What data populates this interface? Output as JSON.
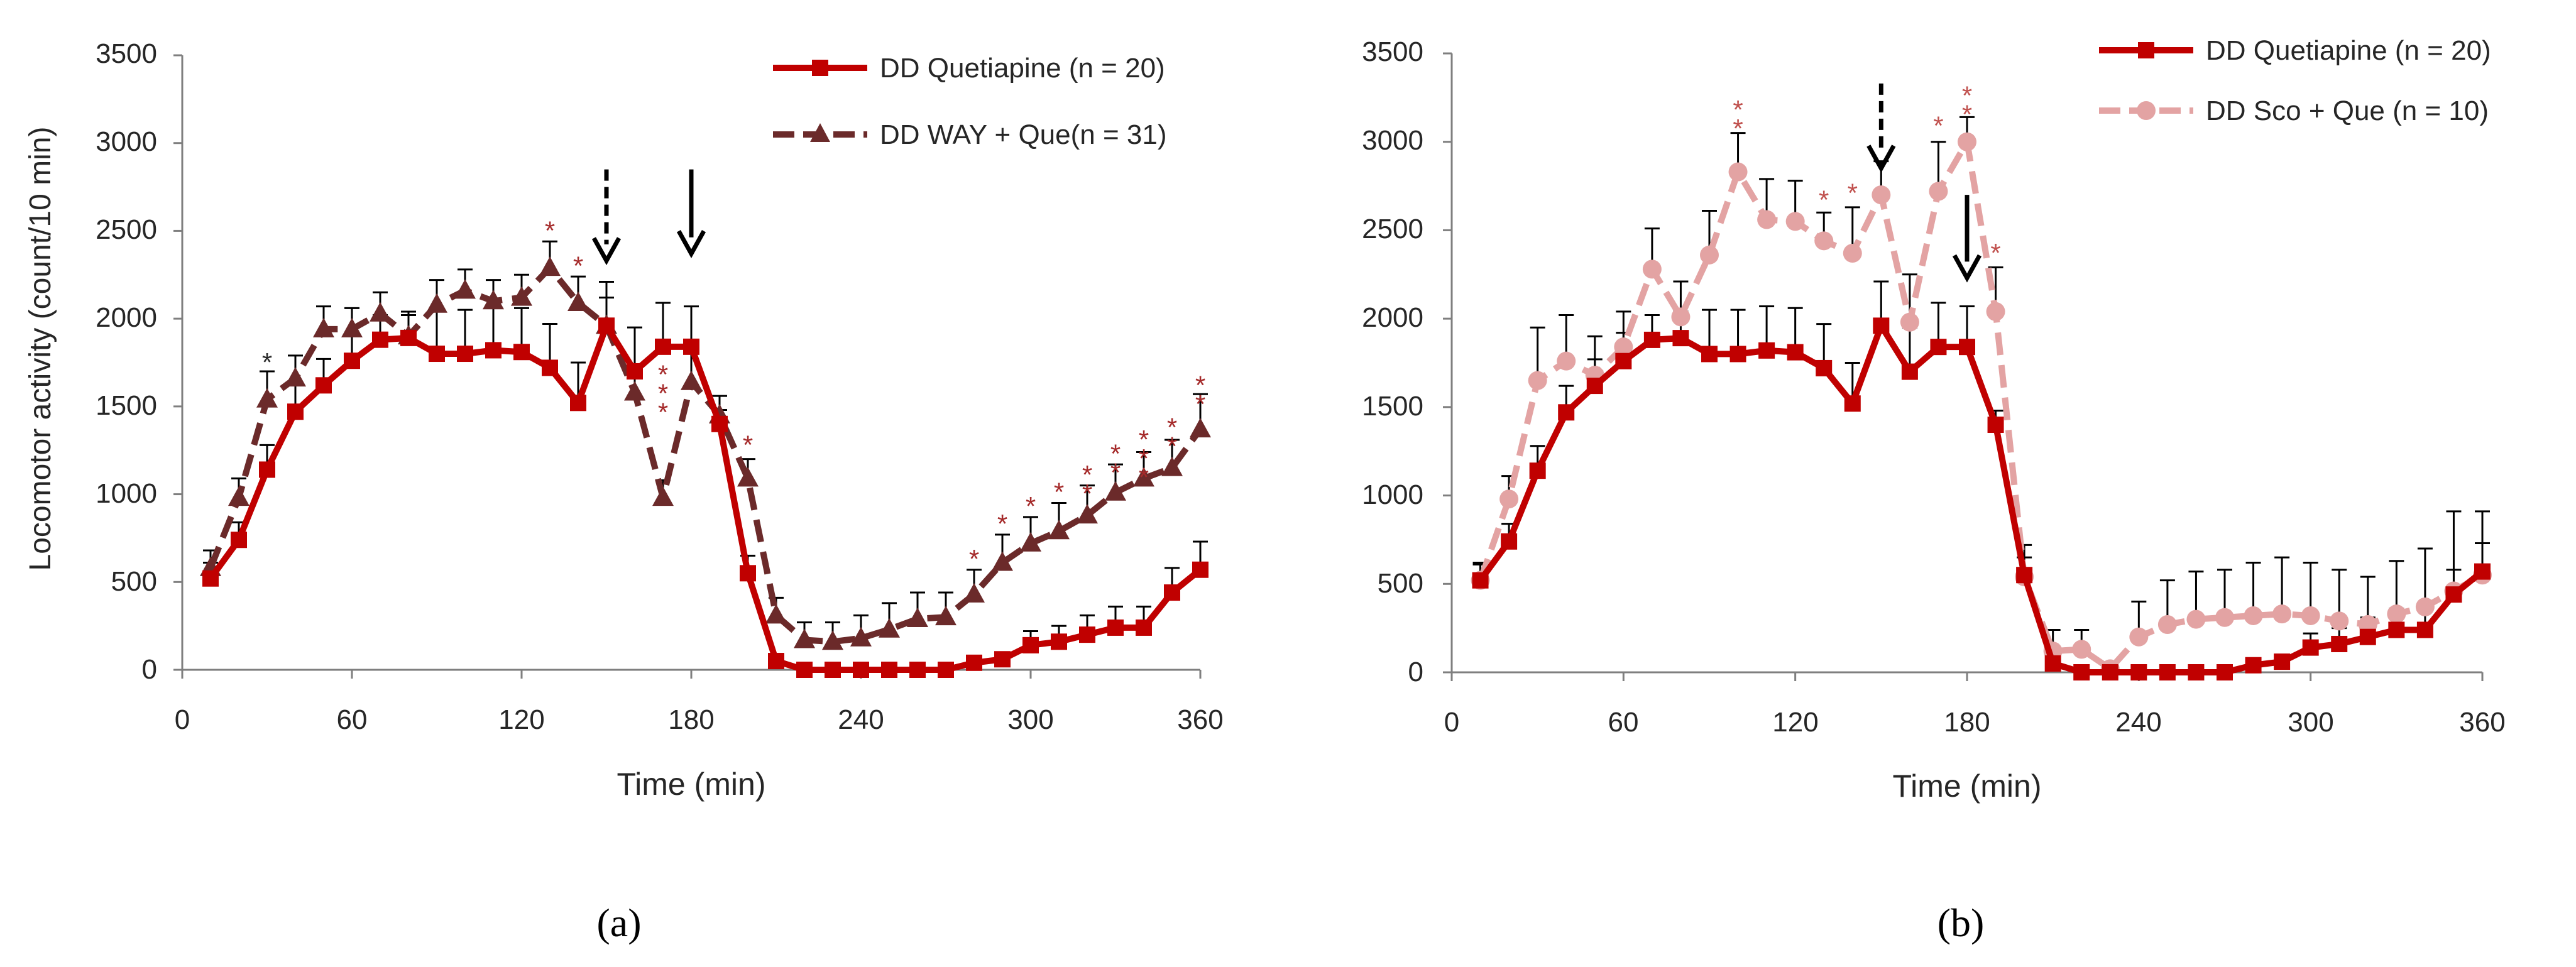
{
  "figure": {
    "ylabel": "Locomotor activity (count/10 min)",
    "colors": {
      "red": "#c00000",
      "maroon": "#6b2a2a",
      "pink": "#e3a3a3",
      "star_red": "#a52a2a",
      "star_pink": "#c0504d",
      "axis": "#7f7f7f",
      "text": "#262626",
      "arrow": "#000000"
    }
  },
  "chart_data": [
    {
      "type": "line",
      "panel_label": "(a)",
      "xlabel": "Time (min)",
      "ylabel": "Locomotor activity (count/10 min)",
      "xlim": [
        0,
        360
      ],
      "ylim": [
        0,
        3500
      ],
      "xticks": [
        0,
        60,
        120,
        180,
        240,
        300,
        360
      ],
      "yticks": [
        0,
        500,
        1000,
        1500,
        2000,
        2500,
        3000,
        3500
      ],
      "grid": false,
      "legend_position": "top-right",
      "x": [
        10,
        20,
        30,
        40,
        50,
        60,
        70,
        80,
        90,
        100,
        110,
        120,
        130,
        140,
        150,
        160,
        170,
        180,
        190,
        200,
        210,
        220,
        230,
        240,
        250,
        260,
        270,
        280,
        290,
        300,
        310,
        320,
        330,
        340,
        350,
        360
      ],
      "series": [
        {
          "name": "DD Quetiapine (n = 20)",
          "color": "#c00000",
          "dash": "solid",
          "marker": "square",
          "values": [
            520,
            740,
            1140,
            1470,
            1620,
            1760,
            1880,
            1890,
            1800,
            1800,
            1820,
            1810,
            1720,
            1520,
            1960,
            1700,
            1840,
            1840,
            1400,
            550,
            50,
            0,
            0,
            0,
            0,
            0,
            0,
            40,
            60,
            140,
            160,
            200,
            240,
            240,
            440,
            570
          ],
          "errors": [
            90,
            100,
            140,
            150,
            150,
            160,
            140,
            150,
            250,
            250,
            250,
            250,
            250,
            230,
            250,
            250,
            250,
            230,
            80,
            100,
            40,
            20,
            20,
            20,
            20,
            20,
            20,
            30,
            40,
            80,
            90,
            110,
            120,
            120,
            140,
            160
          ]
        },
        {
          "name": "DD WAY + Que(n = 31)",
          "color": "#6b2a2a",
          "dash": "dashed",
          "marker": "triangle",
          "values": [
            580,
            980,
            1540,
            1660,
            1940,
            1940,
            2030,
            1900,
            2080,
            2160,
            2100,
            2120,
            2290,
            2090,
            1960,
            1580,
            980,
            1640,
            1450,
            1090,
            310,
            170,
            160,
            180,
            230,
            290,
            300,
            430,
            610,
            720,
            790,
            880,
            1010,
            1090,
            1150,
            1370
          ],
          "errors": [
            100,
            110,
            160,
            130,
            130,
            120,
            120,
            120,
            140,
            120,
            120,
            130,
            150,
            150,
            160,
            110,
            100,
            180,
            110,
            110,
            100,
            100,
            110,
            130,
            150,
            150,
            140,
            140,
            160,
            150,
            160,
            170,
            160,
            150,
            160,
            200
          ]
        }
      ],
      "stars": [
        {
          "x": 30,
          "y": 1700,
          "text": "*",
          "color": "#262626"
        },
        {
          "x": 130,
          "y": 2450,
          "text": "*",
          "color": "#a52a2a"
        },
        {
          "x": 140,
          "y": 2250,
          "text": "*",
          "color": "#a52a2a"
        },
        {
          "x": 170,
          "y": 1630,
          "text": "* * *",
          "color": "#a52a2a"
        },
        {
          "x": 200,
          "y": 1230,
          "text": "*",
          "color": "#a52a2a"
        },
        {
          "x": 280,
          "y": 580,
          "text": "*",
          "color": "#a52a2a"
        },
        {
          "x": 290,
          "y": 780,
          "text": "*",
          "color": "#a52a2a"
        },
        {
          "x": 300,
          "y": 880,
          "text": "*",
          "color": "#a52a2a"
        },
        {
          "x": 310,
          "y": 960,
          "text": "*",
          "color": "#a52a2a"
        },
        {
          "x": 320,
          "y": 1060,
          "text": "* *",
          "color": "#a52a2a"
        },
        {
          "x": 330,
          "y": 1180,
          "text": "* *",
          "color": "#a52a2a"
        },
        {
          "x": 340,
          "y": 1260,
          "text": "* * *",
          "color": "#a52a2a"
        },
        {
          "x": 350,
          "y": 1330,
          "text": "* *",
          "color": "#a52a2a"
        },
        {
          "x": 360,
          "y": 1570,
          "text": "* *",
          "color": "#a52a2a"
        }
      ],
      "arrows": [
        {
          "x": 150,
          "style": "dashed",
          "from": 2850,
          "to": 2330
        },
        {
          "x": 180,
          "style": "solid",
          "from": 2850,
          "to": 2370
        }
      ]
    },
    {
      "type": "line",
      "panel_label": "(b)",
      "xlabel": "Time (min)",
      "ylabel": "",
      "xlim": [
        0,
        360
      ],
      "ylim": [
        0,
        3500
      ],
      "xticks": [
        0,
        60,
        120,
        180,
        240,
        300,
        360
      ],
      "yticks": [
        0,
        500,
        1000,
        1500,
        2000,
        2500,
        3000,
        3500
      ],
      "grid": false,
      "legend_position": "top-right",
      "x": [
        10,
        20,
        30,
        40,
        50,
        60,
        70,
        80,
        90,
        100,
        110,
        120,
        130,
        140,
        150,
        160,
        170,
        180,
        190,
        200,
        210,
        220,
        230,
        240,
        250,
        260,
        270,
        280,
        290,
        300,
        310,
        320,
        330,
        340,
        350,
        360
      ],
      "series": [
        {
          "name": "DD Quetiapine (n = 20)",
          "color": "#c00000",
          "dash": "solid",
          "marker": "square",
          "values": [
            520,
            740,
            1140,
            1470,
            1620,
            1760,
            1880,
            1890,
            1800,
            1800,
            1820,
            1810,
            1720,
            1520,
            1960,
            1700,
            1840,
            1840,
            1400,
            550,
            50,
            0,
            0,
            0,
            0,
            0,
            0,
            40,
            60,
            140,
            160,
            200,
            240,
            240,
            440,
            570
          ],
          "errors": [
            90,
            100,
            140,
            150,
            150,
            160,
            140,
            150,
            250,
            250,
            250,
            250,
            250,
            230,
            250,
            250,
            250,
            230,
            80,
            100,
            40,
            20,
            20,
            20,
            20,
            20,
            20,
            30,
            40,
            80,
            90,
            110,
            120,
            120,
            140,
            160
          ]
        },
        {
          "name": "DD Sco + Que (n = 10)",
          "color": "#e3a3a3",
          "dash": "dashed",
          "marker": "circle",
          "values": [
            520,
            980,
            1650,
            1760,
            1680,
            1840,
            2280,
            2010,
            2360,
            2830,
            2560,
            2550,
            2440,
            2370,
            2700,
            1980,
            2720,
            3000,
            2040,
            540,
            120,
            130,
            20,
            200,
            270,
            300,
            310,
            320,
            330,
            320,
            290,
            270,
            330,
            370,
            460,
            550
          ],
          "errors": [
            100,
            130,
            300,
            260,
            220,
            200,
            230,
            200,
            250,
            220,
            230,
            230,
            160,
            260,
            190,
            270,
            280,
            140,
            250,
            180,
            120,
            110,
            30,
            200,
            250,
            270,
            270,
            300,
            320,
            300,
            290,
            270,
            300,
            330,
            450,
            360
          ]
        }
      ],
      "stars": [
        {
          "x": 100,
          "y": 3130,
          "text": "* *",
          "color": "#c0504d"
        },
        {
          "x": 130,
          "y": 2620,
          "text": "*",
          "color": "#c0504d"
        },
        {
          "x": 140,
          "y": 2660,
          "text": "*",
          "color": "#c0504d"
        },
        {
          "x": 170,
          "y": 3040,
          "text": "*",
          "color": "#c0504d"
        },
        {
          "x": 180,
          "y": 3210,
          "text": "* *",
          "color": "#c0504d"
        },
        {
          "x": 190,
          "y": 2320,
          "text": "*",
          "color": "#c0504d"
        }
      ],
      "arrows": [
        {
          "x": 150,
          "style": "dashed",
          "from": 3330,
          "to": 2850
        },
        {
          "x": 180,
          "style": "solid",
          "from": 2700,
          "to": 2230
        }
      ]
    }
  ]
}
